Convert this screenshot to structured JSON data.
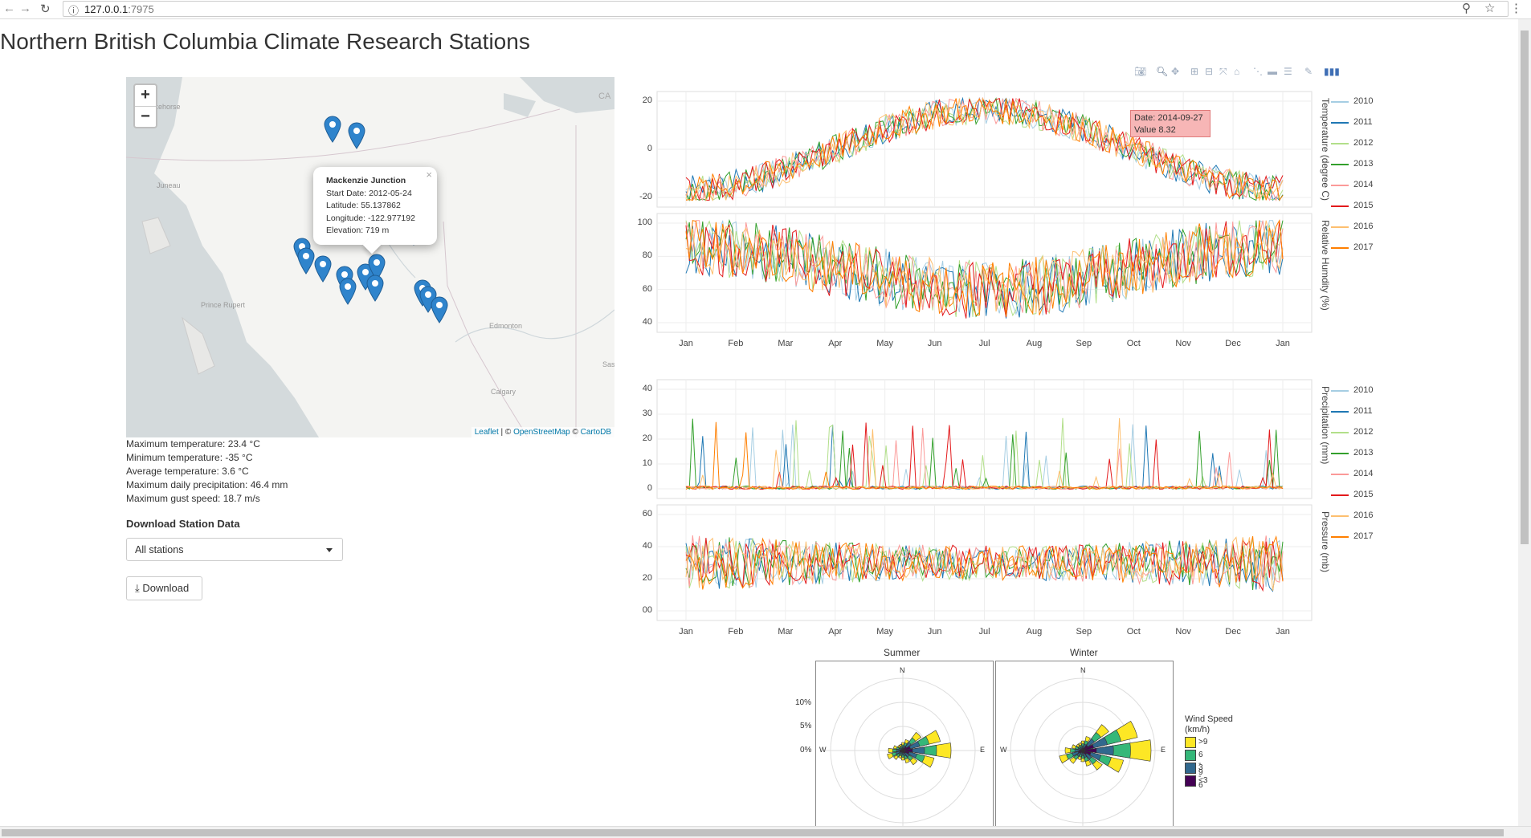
{
  "browser": {
    "url_host": "127.0.0.1",
    "url_port": ":7975"
  },
  "page": {
    "title": "Northern British Columbia Climate Research Stations"
  },
  "map": {
    "zoom_in": "+",
    "zoom_out": "−",
    "place_labels": [
      "Whitehorse",
      "Juneau",
      "Prince Rupert",
      "Edmonton",
      "Calgary",
      "CA",
      "Sas"
    ],
    "popup": {
      "name": "Mackenzie Junction",
      "start_date": "Start Date: 2012-05-24",
      "latitude": "Latitude: 55.137862",
      "longitude": "Longitude: -122.977192",
      "elevation": "Elevation: 719 m",
      "close": "×"
    },
    "attribution": {
      "leaflet": "Leaflet",
      "sep1": " | © ",
      "osm": "OpenStreetMap",
      "sep2": " © ",
      "carto": "CartoDB"
    }
  },
  "stats": {
    "max_temp": "Maximum temperature: 23.4 °C",
    "min_temp": "Minimum temperature: -35 °C",
    "avg_temp": "Average temperature: 3.6 °C",
    "max_precip": "Maximum daily precipitation: 46.4 mm",
    "max_gust": "Maximum gust speed: 18.7 m/s"
  },
  "download": {
    "heading": "Download Station Data",
    "selected": "All stations",
    "button": "Download"
  },
  "colors": {
    "2010": "#a6cee3",
    "2011": "#1f78b4",
    "2012": "#b2df8a",
    "2013": "#33a02c",
    "2014": "#fb9a99",
    "2015": "#e31a1c",
    "2016": "#fdbf6f",
    "2017": "#ff7f00"
  },
  "chart_data": [
    {
      "type": "line",
      "ylabel": "Temperature (degree C)",
      "series_names": [
        "2010",
        "2011",
        "2012",
        "2013",
        "2014",
        "2015",
        "2016",
        "2017"
      ],
      "x_ticks": [
        "Jan",
        "Feb",
        "Mar",
        "Apr",
        "May",
        "Jun",
        "Jul",
        "Aug",
        "Sep",
        "Oct",
        "Nov",
        "Dec",
        "Jan"
      ],
      "y_ticks": [
        "20",
        "0",
        "-20"
      ],
      "ylim": [
        -35,
        25
      ],
      "tooltip": {
        "date": "Date: 2014-09-27",
        "value": "Value 8.32"
      }
    },
    {
      "type": "line",
      "ylabel": "Relative Humdity (%)",
      "y_ticks": [
        "100",
        "80",
        "60",
        "40"
      ],
      "ylim": [
        35,
        100
      ]
    },
    {
      "type": "line",
      "ylabel": "Precipitation (mm)",
      "series_names": [
        "2010",
        "2011",
        "2012",
        "2013",
        "2014",
        "2015",
        "2016",
        "2017"
      ],
      "x_ticks": [
        "Jan",
        "Feb",
        "Mar",
        "Apr",
        "May",
        "Jun",
        "Jul",
        "Aug",
        "Sep",
        "Oct",
        "Nov",
        "Dec",
        "Jan"
      ],
      "y_ticks": [
        "40",
        "30",
        "20",
        "10",
        "0"
      ],
      "ylim": [
        -3,
        47
      ]
    },
    {
      "type": "line",
      "ylabel": "Pressure (mb)",
      "y_ticks": [
        "60",
        "40",
        "20",
        "00"
      ],
      "ylim": [
        -5,
        65
      ]
    }
  ],
  "wind_rose": {
    "titles": [
      "Summer",
      "Winter"
    ],
    "pct_labels": [
      "10%",
      "5%",
      "0%"
    ],
    "dirs": {
      "n": "N",
      "e": "E",
      "w": "W"
    },
    "legend_title": "Wind Speed (km/h)",
    "legend": [
      {
        "label": ">9",
        "color": "#fde725"
      },
      {
        "label": "6 - 9",
        "color": "#35b779"
      },
      {
        "label": "3 - 6",
        "color": "#31688e"
      },
      {
        "label": "<3",
        "color": "#440154"
      }
    ]
  }
}
